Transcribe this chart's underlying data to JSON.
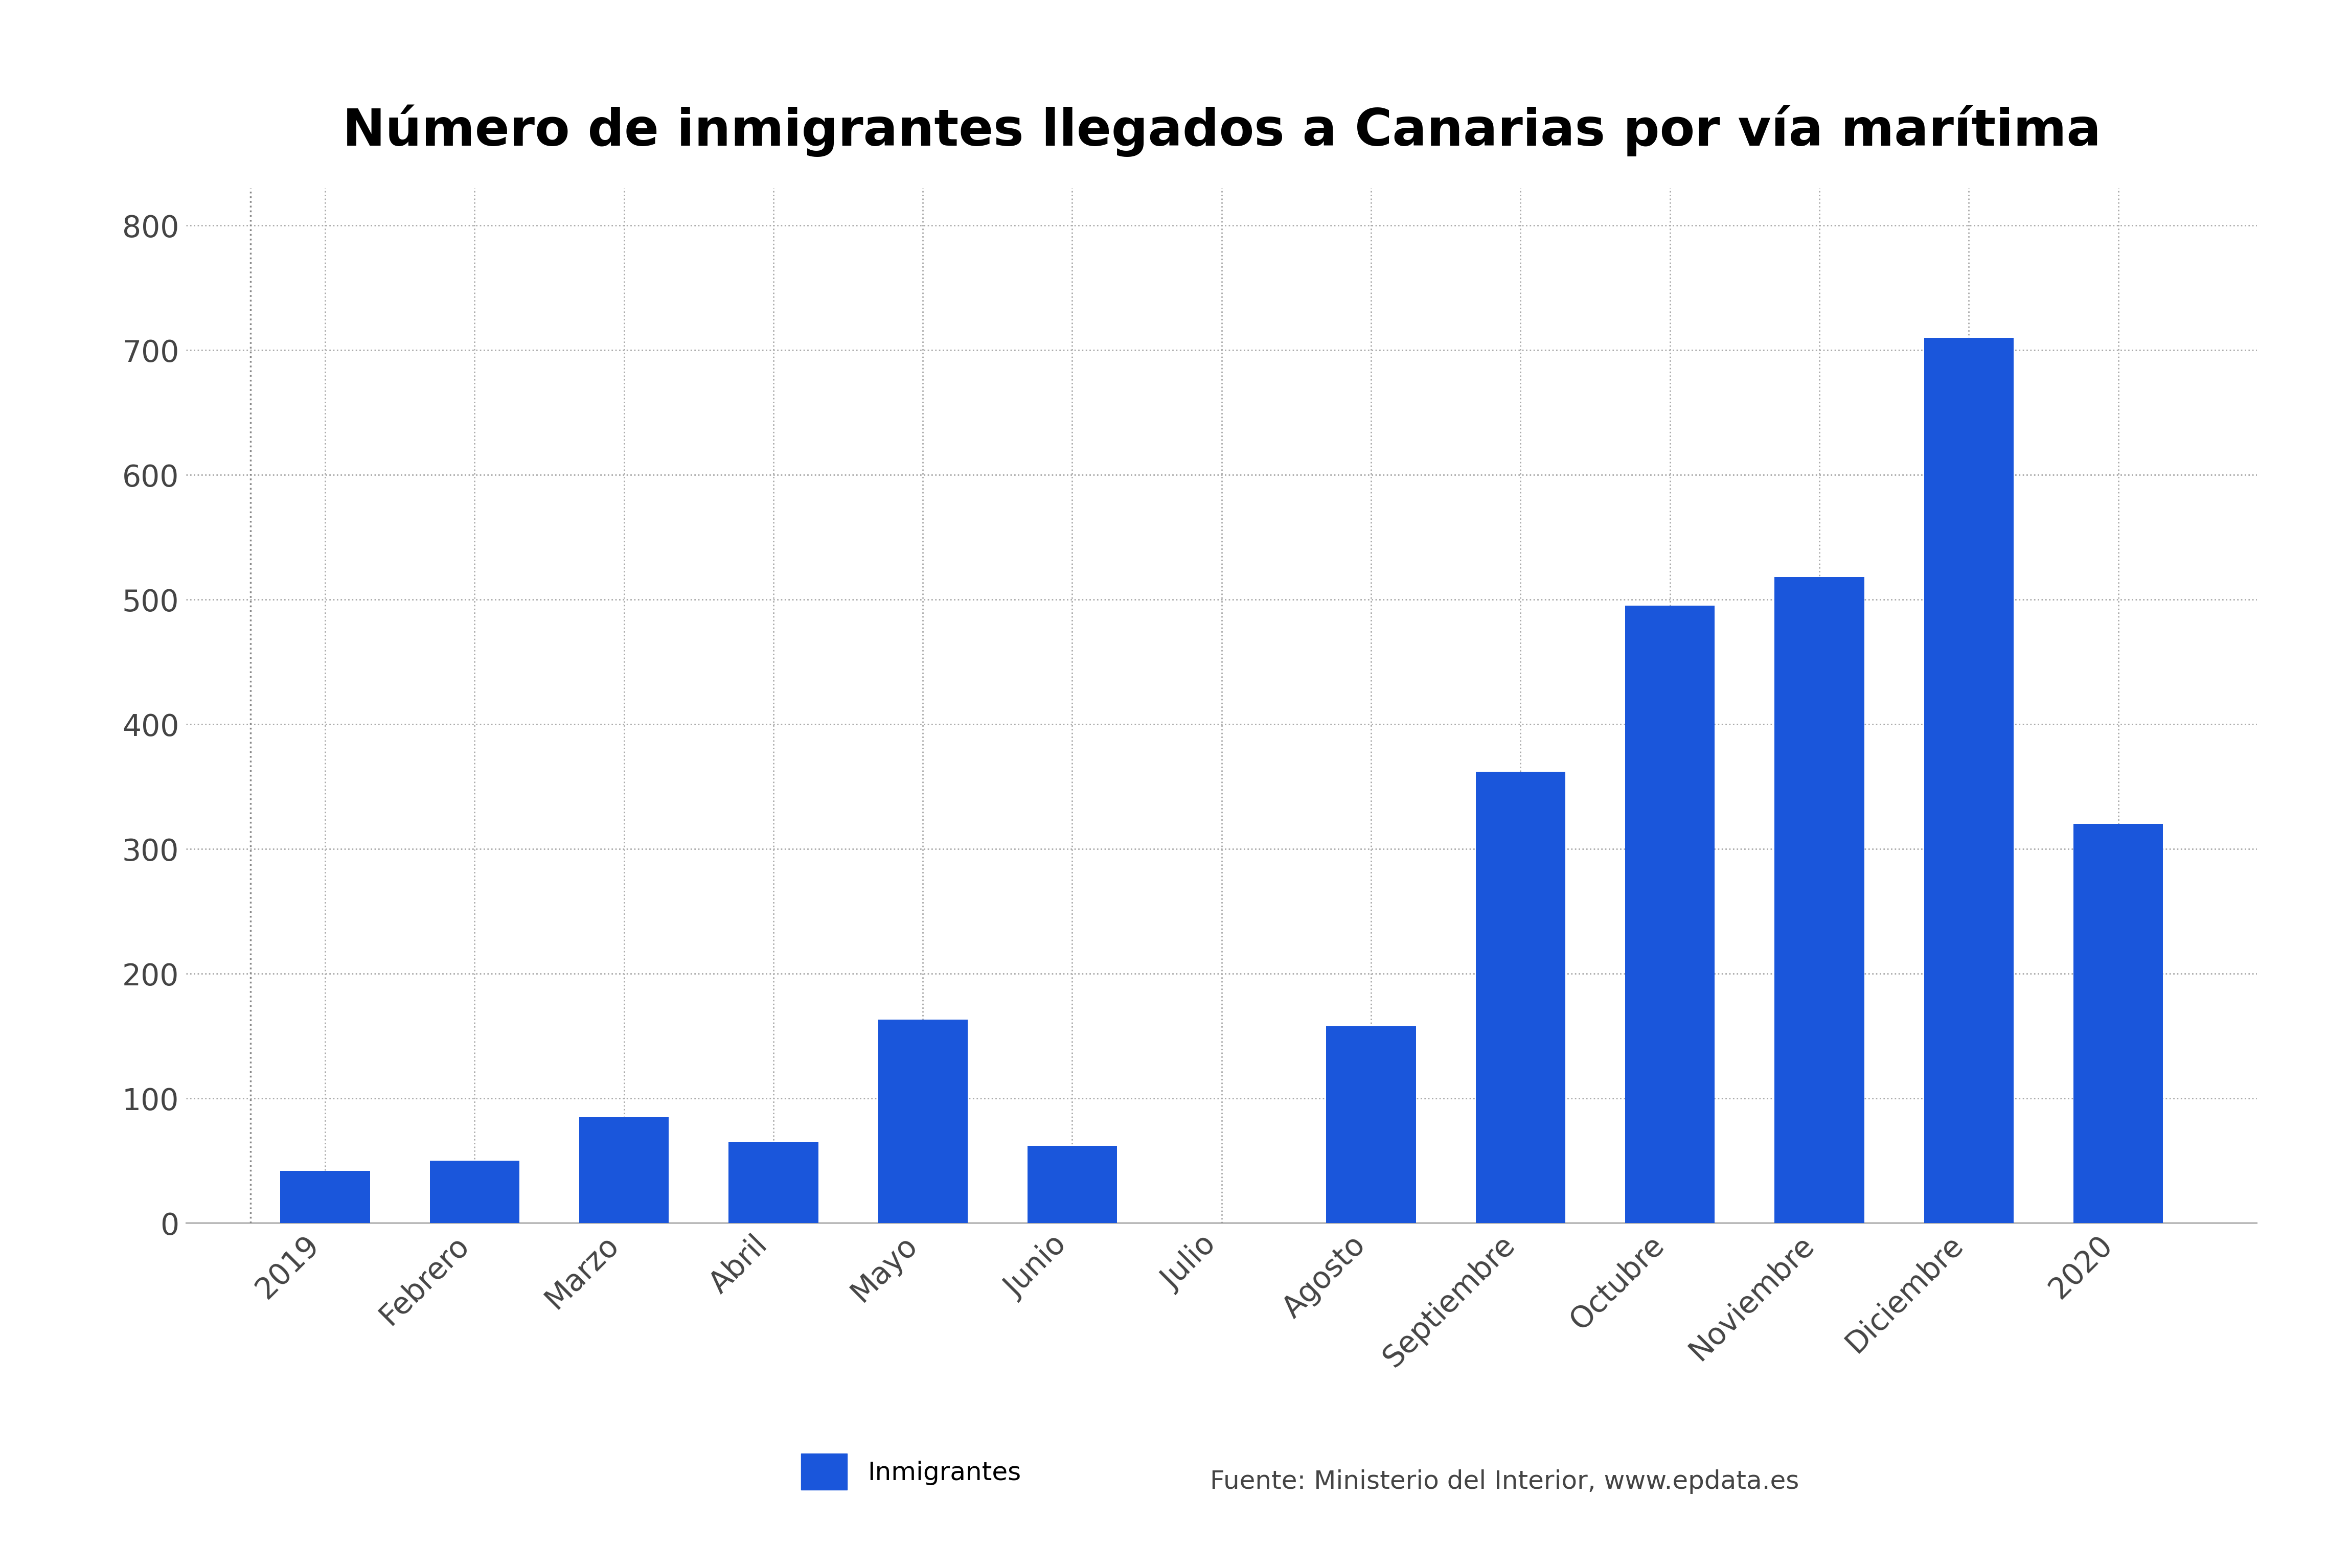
{
  "title": "Número de inmigrantes llegados a Canarias por vía marítima",
  "categories": [
    "2019",
    "Febrero",
    "Marzo",
    "Abril",
    "Mayo",
    "Junio",
    "Julio",
    "Agosto",
    "Septiembre",
    "Octubre",
    "Noviembre",
    "Diciembre",
    "2020"
  ],
  "values": [
    42,
    50,
    85,
    65,
    163,
    62,
    0,
    158,
    362,
    495,
    518,
    710,
    320
  ],
  "bar_color": "#1a56db",
  "ylim": [
    0,
    830
  ],
  "yticks": [
    0,
    100,
    200,
    300,
    400,
    500,
    600,
    700,
    800
  ],
  "legend_label": "Inmigrantes",
  "source_text": "Fuente: Ministerio del Interior, www.epdata.es",
  "background_color": "#ffffff",
  "title_fontsize": 72,
  "label_fontsize": 36,
  "tick_fontsize": 42,
  "legend_fontsize": 36
}
